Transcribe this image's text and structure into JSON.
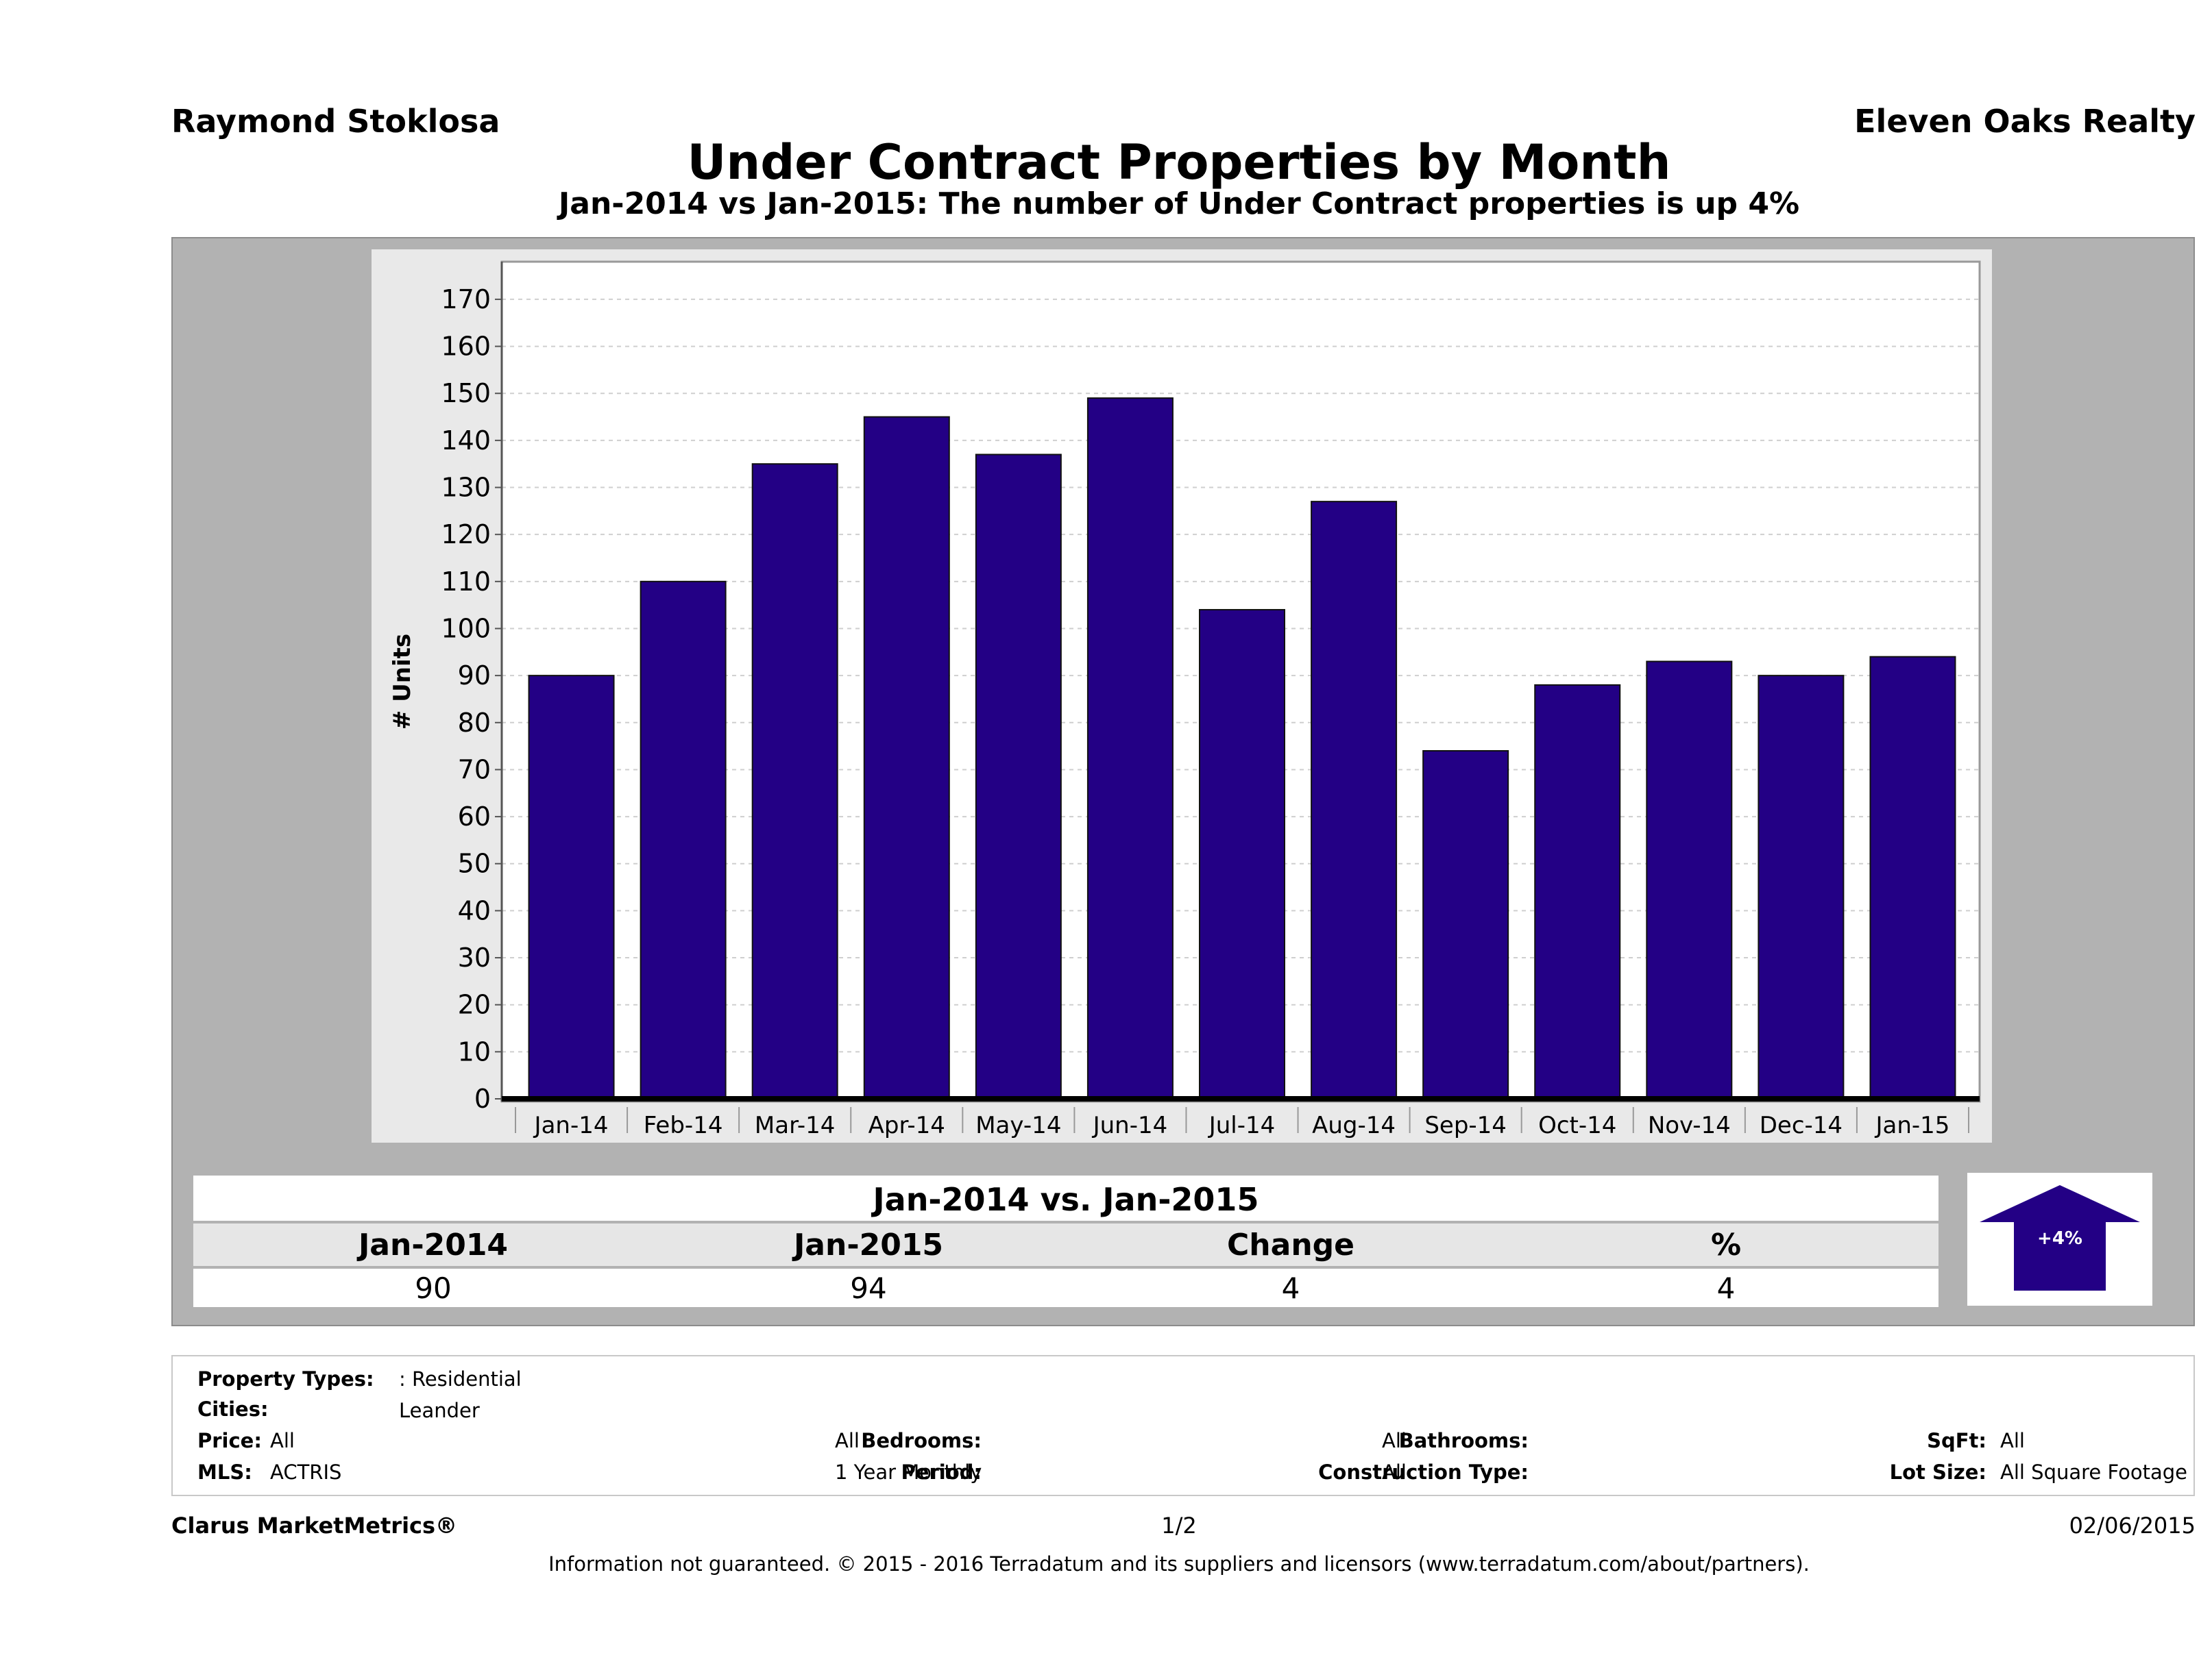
{
  "header": {
    "agent": "Raymond Stoklosa",
    "company": "Eleven Oaks Realty",
    "title": "Under Contract Properties by Month",
    "subtitle": "Jan-2014 vs Jan-2015: The number of Under Contract  properties is up 4%"
  },
  "chart_data": {
    "type": "bar",
    "title": "Under Contract Properties by Month",
    "xlabel": "",
    "ylabel": "# Units",
    "categories": [
      "Jan-14",
      "Feb-14",
      "Mar-14",
      "Apr-14",
      "May-14",
      "Jun-14",
      "Jul-14",
      "Aug-14",
      "Sep-14",
      "Oct-14",
      "Nov-14",
      "Dec-14",
      "Jan-15"
    ],
    "values": [
      90,
      110,
      135,
      145,
      137,
      149,
      104,
      127,
      74,
      88,
      93,
      90,
      94
    ],
    "ylim": [
      0,
      178
    ],
    "yticks": [
      0,
      10,
      20,
      30,
      40,
      50,
      60,
      70,
      80,
      90,
      100,
      110,
      120,
      130,
      140,
      150,
      160,
      170
    ],
    "grid": true,
    "bar_color": "#230085"
  },
  "summary": {
    "title": "Jan-2014 vs. Jan-2015",
    "headers": [
      "Jan-2014",
      "Jan-2015",
      "Change",
      "%"
    ],
    "values": [
      "90",
      "94",
      "4",
      "4"
    ],
    "badge": "+4%",
    "badge_color": "#230085"
  },
  "criteria": {
    "property_types_label": "Property Types:",
    "property_types_value": ": Residential",
    "cities_label": "Cities:",
    "cities_value": "Leander",
    "price_label": "Price:",
    "price_value": "All",
    "mls_label": "MLS:",
    "mls_value": "ACTRIS",
    "bedrooms_label": "Bedrooms:",
    "bedrooms_value": "All",
    "period_label": "Period:",
    "period_value": "1 Year Monthly",
    "bathrooms_label": "Bathrooms:",
    "bathrooms_value": "All",
    "construction_label": "Construction Type:",
    "construction_value": "All",
    "sqft_label": "SqFt:",
    "sqft_value": "All",
    "lot_label": "Lot Size:",
    "lot_value": "All Square Footage"
  },
  "footer": {
    "brand": "Clarus MarketMetrics®",
    "page": "1/2",
    "date": "02/06/2015",
    "disclaimer": "Information not guaranteed. © 2015 - 2016 Terradatum and its suppliers and licensors (www.terradatum.com/about/partners)."
  }
}
